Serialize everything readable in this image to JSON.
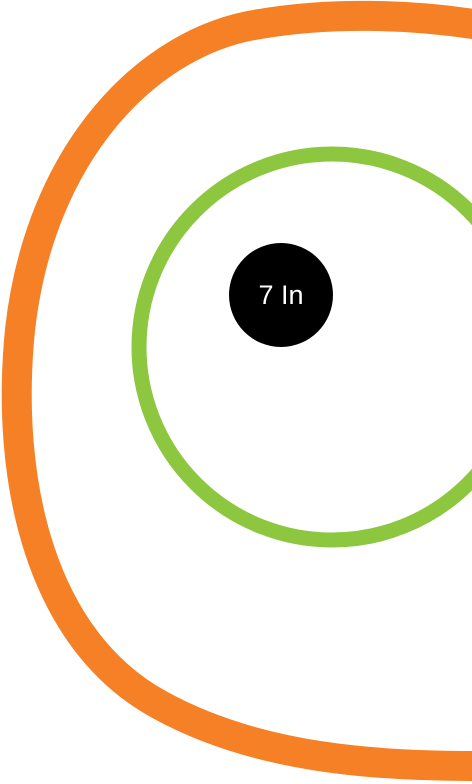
{
  "badge": {
    "label": "7 In"
  },
  "colors": {
    "background": "#ffffff",
    "outer_ring": "#f58025",
    "inner_ring": "#8dc63f",
    "badge_fill": "#000000",
    "badge_text": "#ffffff"
  }
}
